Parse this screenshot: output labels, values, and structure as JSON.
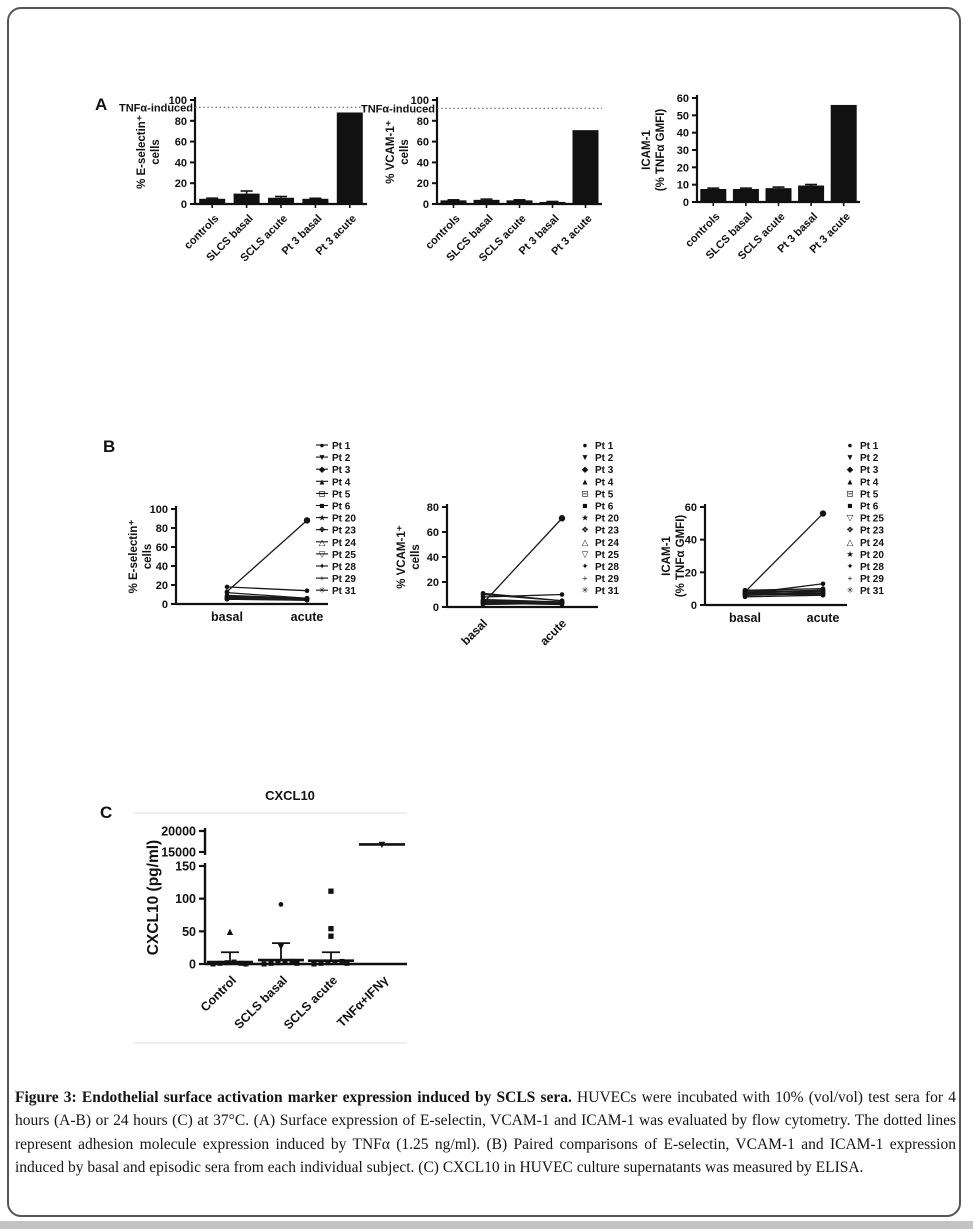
{
  "page": {
    "ink_color": "#111111",
    "border_color": "#555555",
    "faint_line_color": "#e6e6e6",
    "bottom_strip_color": "#c4c4c4",
    "background": "#ffffff"
  },
  "panels": {
    "a_label": "A",
    "b_label": "B",
    "c_label": "C"
  },
  "caption": {
    "lead": "Figure 3: Endothelial surface activation marker expression induced by SCLS sera.",
    "body": " HUVECs were incubated with 10% (vol/vol) test sera for 4 hours (A-B) or 24 hours (C) at 37°C. (A) Surface expression of E-selectin, VCAM-1 and ICAM-1 was evaluated by flow cytometry. The dotted lines represent adhesion molecule expression induced by TNFα (1.25 ng/ml). (B) Paired comparisons of E-selectin, VCAM-1 and ICAM-1 expression induced by basal and episodic sera from each individual subject. (C) CXCL10 in HUVEC culture supernatants was measured by ELISA."
  },
  "chart_data": [
    {
      "id": "a1",
      "type": "bar",
      "ylabel_lines": [
        "% E-selectin⁺",
        "cells"
      ],
      "ylim": [
        0,
        100
      ],
      "yticks": [
        0,
        20,
        40,
        60,
        80,
        100
      ],
      "categories": [
        "controls",
        "SLCS basal",
        "SCLS acute",
        "Pt 3 basal",
        "Pt 3 acute"
      ],
      "values": [
        5,
        10,
        6,
        5,
        88
      ],
      "errors": [
        0.6,
        2.5,
        1.2,
        0.5,
        0
      ],
      "refline": {
        "value": 93,
        "label": "TNFα-induced"
      }
    },
    {
      "id": "a2",
      "type": "bar",
      "ylabel_lines": [
        "% VCAM-1⁺",
        "cells"
      ],
      "ylim": [
        0,
        100
      ],
      "yticks": [
        0,
        20,
        40,
        60,
        80,
        100
      ],
      "categories": [
        "controls",
        "SLCS basal",
        "SCLS acute",
        "Pt 3 basal",
        "Pt 3 acute"
      ],
      "values": [
        3.5,
        4,
        3.5,
        2,
        71
      ],
      "errors": [
        0.5,
        0.7,
        0.5,
        0.4,
        0
      ],
      "refline": {
        "value": 92,
        "label": "TNFα-induced"
      }
    },
    {
      "id": "a3",
      "type": "bar",
      "ylabel_lines": [
        "ICAM-1",
        "(% TNFα GMFI)"
      ],
      "ylim": [
        0,
        60
      ],
      "yticks": [
        0,
        10,
        20,
        30,
        40,
        50,
        60
      ],
      "categories": [
        "controls",
        "SLCS basal",
        "SCLS acute",
        "Pt 3 basal",
        "Pt 3 acute"
      ],
      "values": [
        7.5,
        7.5,
        8,
        9.5,
        56
      ],
      "errors": [
        0.5,
        0.5,
        0.6,
        0.6,
        0
      ],
      "refline": null
    },
    {
      "id": "b1",
      "type": "paired",
      "ylabel_lines": [
        "% E-selectin⁺",
        "cells"
      ],
      "ylim": [
        0,
        100
      ],
      "yticks": [
        0,
        20,
        40,
        60,
        80,
        100
      ],
      "x": [
        "basal",
        "acute"
      ],
      "x_rotated": false,
      "legend_line": true,
      "series": [
        {
          "name": "Pt 1",
          "marker": "●",
          "values": [
            8,
            6
          ]
        },
        {
          "name": "Pt 2",
          "marker": "▼",
          "values": [
            18,
            14
          ]
        },
        {
          "name": "Pt 3",
          "marker": "◆",
          "values": [
            13,
            88
          ]
        },
        {
          "name": "Pt 4",
          "marker": "▲",
          "values": [
            6,
            5
          ]
        },
        {
          "name": "Pt 5",
          "marker": "⊟",
          "values": [
            12,
            6
          ]
        },
        {
          "name": "Pt 6",
          "marker": "■",
          "values": [
            7,
            6
          ]
        },
        {
          "name": "Pt 20",
          "marker": "★",
          "values": [
            5,
            4
          ]
        },
        {
          "name": "Pt 23",
          "marker": "❖",
          "values": [
            6,
            5
          ]
        },
        {
          "name": "Pt 24",
          "marker": "△",
          "values": [
            9,
            6
          ]
        },
        {
          "name": "Pt 25",
          "marker": "▽",
          "values": [
            5,
            5
          ]
        },
        {
          "name": "Pt 28",
          "marker": "✦",
          "values": [
            7,
            5
          ]
        },
        {
          "name": "Pt 29",
          "marker": "+",
          "values": [
            6,
            4
          ]
        },
        {
          "name": "Pt 31",
          "marker": "✳",
          "values": [
            5,
            6
          ]
        }
      ]
    },
    {
      "id": "b2",
      "type": "paired",
      "ylabel_lines": [
        "% VCAM-1⁺",
        "cells"
      ],
      "ylim": [
        0,
        80
      ],
      "yticks": [
        0,
        20,
        40,
        60,
        80
      ],
      "x": [
        "basal",
        "acute"
      ],
      "x_rotated": true,
      "legend_line": false,
      "series": [
        {
          "name": "Pt 1",
          "marker": "●",
          "values": [
            5,
            4
          ]
        },
        {
          "name": "Pt 2",
          "marker": "▼",
          "values": [
            8,
            10
          ]
        },
        {
          "name": "Pt 3",
          "marker": "◆",
          "values": [
            3,
            71
          ]
        },
        {
          "name": "Pt 4",
          "marker": "▲",
          "values": [
            4,
            3
          ]
        },
        {
          "name": "Pt 5",
          "marker": "⊟",
          "values": [
            10,
            5
          ]
        },
        {
          "name": "Pt 6",
          "marker": "■",
          "values": [
            3,
            3
          ]
        },
        {
          "name": "Pt 20",
          "marker": "★",
          "values": [
            6,
            4
          ]
        },
        {
          "name": "Pt 23",
          "marker": "❖",
          "values": [
            4,
            3
          ]
        },
        {
          "name": "Pt 24",
          "marker": "△",
          "values": [
            11,
            5
          ]
        },
        {
          "name": "Pt 25",
          "marker": "▽",
          "values": [
            3,
            2
          ]
        },
        {
          "name": "Pt 28",
          "marker": "✦",
          "values": [
            5,
            4
          ]
        },
        {
          "name": "Pt 29",
          "marker": "+",
          "values": [
            4,
            3
          ]
        },
        {
          "name": "Pt 31",
          "marker": "✳",
          "values": [
            2,
            3
          ]
        }
      ]
    },
    {
      "id": "b3",
      "type": "paired",
      "ylabel_lines": [
        "ICAM-1",
        "(% TNFα GMFI)"
      ],
      "ylim": [
        0,
        60
      ],
      "yticks": [
        0,
        20,
        40,
        60
      ],
      "x": [
        "basal",
        "acute"
      ],
      "x_rotated": false,
      "legend_line": false,
      "series": [
        {
          "name": "Pt 1",
          "marker": "●",
          "values": [
            8,
            9
          ]
        },
        {
          "name": "Pt 2",
          "marker": "▼",
          "values": [
            7,
            7
          ]
        },
        {
          "name": "Pt 3",
          "marker": "◆",
          "values": [
            8,
            56
          ]
        },
        {
          "name": "Pt 4",
          "marker": "▲",
          "values": [
            6,
            7
          ]
        },
        {
          "name": "Pt 5",
          "marker": "⊟",
          "values": [
            9,
            8
          ]
        },
        {
          "name": "Pt 6",
          "marker": "■",
          "values": [
            7,
            6
          ]
        },
        {
          "name": "Pt 25",
          "marker": "▽",
          "values": [
            6,
            7
          ]
        },
        {
          "name": "Pt 23",
          "marker": "❖",
          "values": [
            8,
            8
          ]
        },
        {
          "name": "Pt 24",
          "marker": "△",
          "values": [
            5,
            6
          ]
        },
        {
          "name": "Pt 20",
          "marker": "★",
          "values": [
            7,
            9
          ]
        },
        {
          "name": "Pt 28",
          "marker": "✦",
          "values": [
            9,
            10
          ]
        },
        {
          "name": "Pt 29",
          "marker": "+",
          "values": [
            7,
            13
          ]
        },
        {
          "name": "Pt 31",
          "marker": "✳",
          "values": [
            6,
            8
          ]
        }
      ]
    },
    {
      "id": "c",
      "type": "scatter-broken",
      "title": "CXCL10",
      "ylabel": "CXCL10 (pg/ml)",
      "axis_break": {
        "top_range": [
          15000,
          20000
        ],
        "top_ticks": [
          15000,
          20000
        ],
        "bottom_range": [
          0,
          150
        ],
        "bottom_ticks": [
          0,
          50,
          100,
          150
        ]
      },
      "categories": [
        {
          "label": "Control",
          "cluster": [
            0,
            1,
            2,
            3,
            1,
            0
          ],
          "outliers": [
            {
              "value": 50,
              "marker": "▲"
            }
          ],
          "mean": 3,
          "err": 18
        },
        {
          "label": "SCLS basal",
          "cluster": [
            0,
            1,
            2,
            3,
            4,
            1
          ],
          "outliers": [
            {
              "value": 27,
              "marker": "▼"
            },
            {
              "value": 92,
              "marker": "●"
            }
          ],
          "mean": 6,
          "err": 32
        },
        {
          "label": "SCLS acute",
          "cluster": [
            0,
            1,
            2,
            3,
            4,
            1
          ],
          "outliers": [
            {
              "value": 43,
              "marker": "■"
            },
            {
              "value": 55,
              "marker": "■"
            },
            {
              "value": 112,
              "marker": "■"
            }
          ],
          "mean": 5,
          "err": 18
        },
        {
          "label": "TNFα+IFNγ",
          "cluster": [],
          "outliers": [
            {
              "value": 16800,
              "marker": "▼"
            }
          ],
          "mean": 16800,
          "err": 0
        }
      ]
    }
  ]
}
